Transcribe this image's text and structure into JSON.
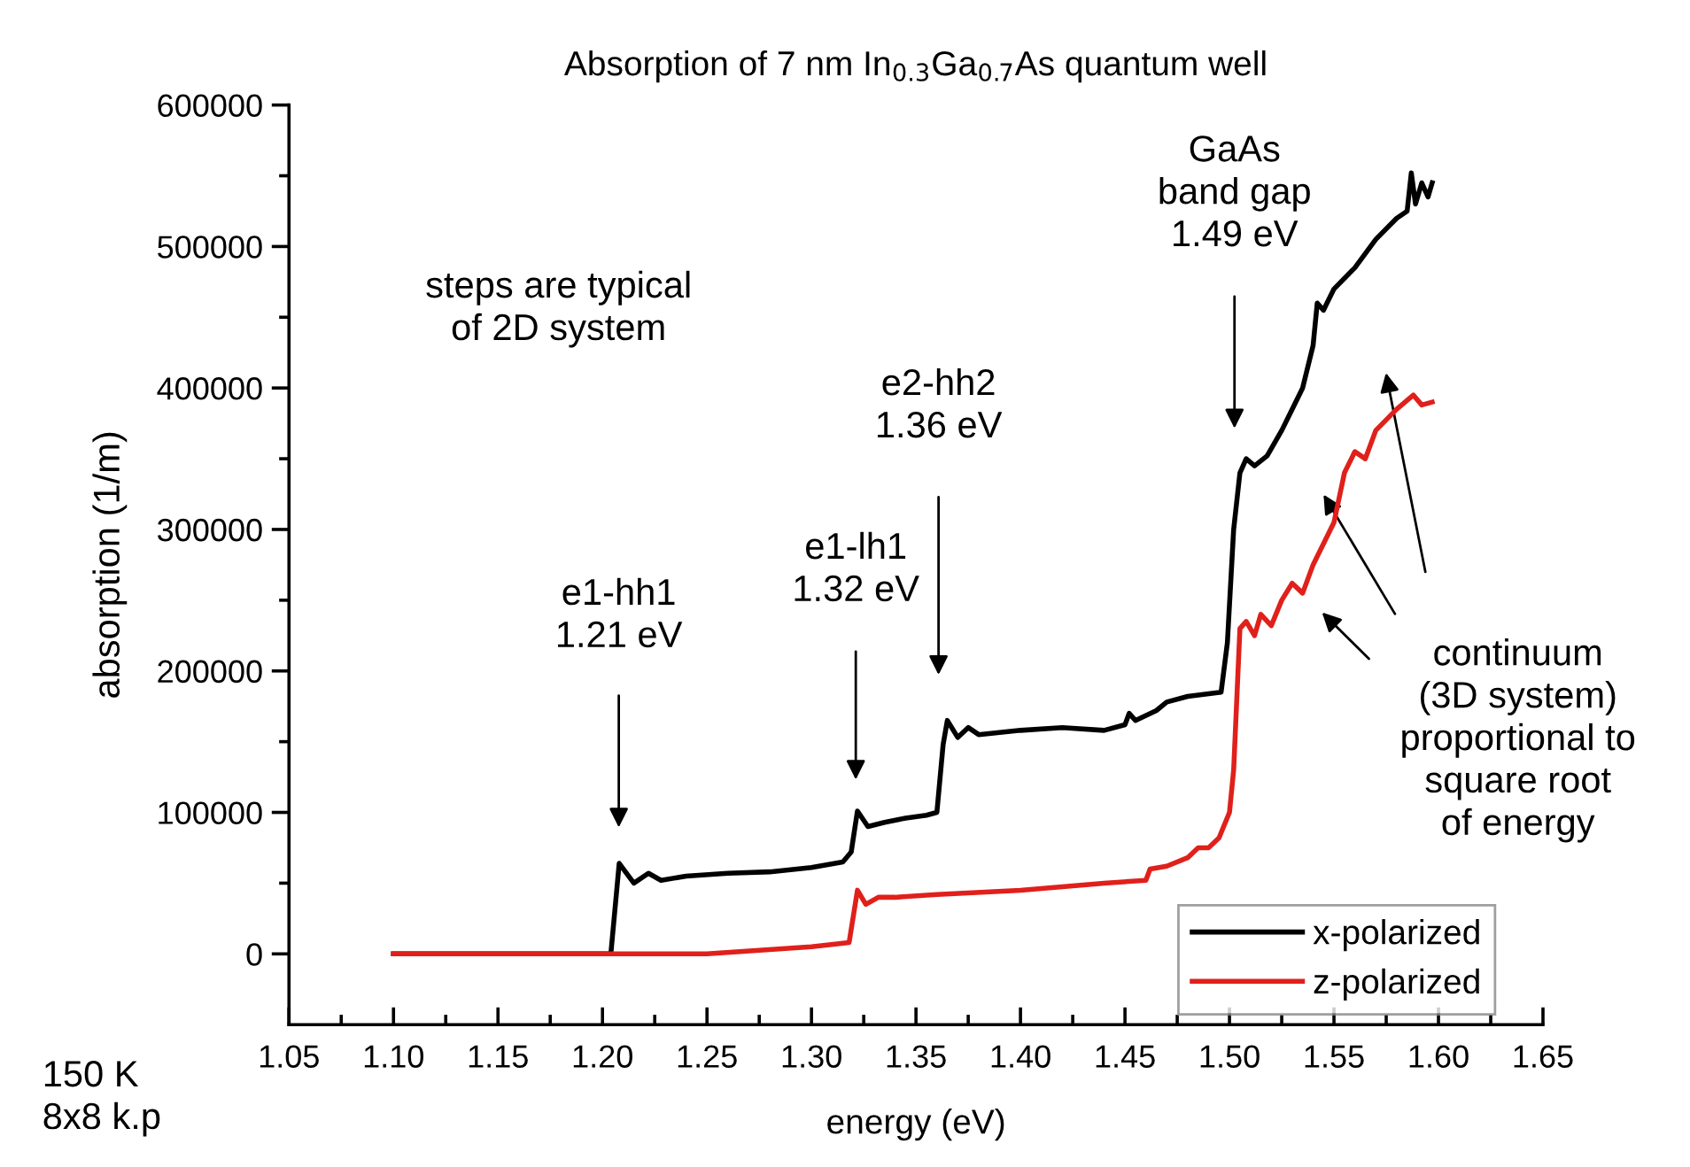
{
  "chart_data": {
    "type": "line",
    "title": "Absorption of 7 nm In$_{0.3}$Ga$_{0.7}$As quantum well",
    "xlabel": "energy (eV)",
    "ylabel": "absorption (1/m)",
    "xlim": [
      1.05,
      1.65
    ],
    "ylim": [
      -50000,
      600000
    ],
    "xticks": [
      {
        "value": 1.05,
        "label": "1.05"
      },
      {
        "value": 1.075,
        "label": null
      },
      {
        "value": 1.1,
        "label": "1.10"
      },
      {
        "value": 1.125,
        "label": null
      },
      {
        "value": 1.15,
        "label": "1.15"
      },
      {
        "value": 1.175,
        "label": null
      },
      {
        "value": 1.2,
        "label": "1.20"
      },
      {
        "value": 1.225,
        "label": null
      },
      {
        "value": 1.25,
        "label": "1.25"
      },
      {
        "value": 1.275,
        "label": null
      },
      {
        "value": 1.3,
        "label": "1.30"
      },
      {
        "value": 1.325,
        "label": null
      },
      {
        "value": 1.35,
        "label": "1.35"
      },
      {
        "value": 1.375,
        "label": null
      },
      {
        "value": 1.4,
        "label": "1.40"
      },
      {
        "value": 1.425,
        "label": null
      },
      {
        "value": 1.45,
        "label": "1.45"
      },
      {
        "value": 1.475,
        "label": null
      },
      {
        "value": 1.5,
        "label": "1.50"
      },
      {
        "value": 1.525,
        "label": null
      },
      {
        "value": 1.55,
        "label": "1.55"
      },
      {
        "value": 1.575,
        "label": null
      },
      {
        "value": 1.6,
        "label": "1.60"
      },
      {
        "value": 1.625,
        "label": null
      },
      {
        "value": 1.65,
        "label": "1.65"
      }
    ],
    "yticks": [
      0,
      {
        "value": 50000,
        "label": null
      },
      100000,
      {
        "value": 150000,
        "label": null
      },
      200000,
      {
        "value": 250000,
        "label": null
      },
      300000,
      {
        "value": 350000,
        "label": null
      },
      400000,
      {
        "value": 450000,
        "label": null
      },
      500000,
      {
        "value": 550000,
        "label": null
      },
      600000
    ],
    "grid": false,
    "legend": "bottom right",
    "marker": "none",
    "line_style": "solid",
    "series": [
      {
        "name": "x-polarized",
        "color": "#000000",
        "x": [
          1.1,
          1.204,
          1.208,
          1.215,
          1.222,
          1.228,
          1.24,
          1.26,
          1.28,
          1.3,
          1.315,
          1.319,
          1.322,
          1.327,
          1.335,
          1.345,
          1.355,
          1.36,
          1.363,
          1.365,
          1.37,
          1.375,
          1.38,
          1.4,
          1.42,
          1.44,
          1.45,
          1.452,
          1.455,
          1.465,
          1.47,
          1.48,
          1.496,
          1.499,
          1.502,
          1.505,
          1.508,
          1.512,
          1.518,
          1.525,
          1.53,
          1.535,
          1.54,
          1.542,
          1.545,
          1.55,
          1.56,
          1.57,
          1.58,
          1.585,
          1.587,
          1.589,
          1.592,
          1.595,
          1.597
        ],
        "values": [
          0,
          0,
          64000,
          50000,
          57000,
          52000,
          55000,
          57000,
          58000,
          61000,
          65000,
          72000,
          101000,
          90000,
          93000,
          96000,
          98000,
          100000,
          148000,
          165000,
          153000,
          160000,
          155000,
          158000,
          160000,
          158000,
          162000,
          170000,
          165000,
          172000,
          178000,
          182000,
          185000,
          220000,
          300000,
          340000,
          350000,
          345000,
          352000,
          370000,
          385000,
          400000,
          430000,
          460000,
          455000,
          470000,
          485000,
          505000,
          520000,
          525000,
          552000,
          530000,
          545000,
          535000,
          545000
        ]
      },
      {
        "name": "z-polarized",
        "color": "#e0201b",
        "x": [
          1.1,
          1.25,
          1.3,
          1.318,
          1.322,
          1.326,
          1.332,
          1.34,
          1.36,
          1.4,
          1.44,
          1.46,
          1.462,
          1.47,
          1.48,
          1.485,
          1.49,
          1.495,
          1.5,
          1.502,
          1.505,
          1.508,
          1.512,
          1.515,
          1.52,
          1.525,
          1.53,
          1.535,
          1.54,
          1.545,
          1.55,
          1.555,
          1.56,
          1.565,
          1.57,
          1.58,
          1.588,
          1.592,
          1.597
        ],
        "values": [
          0,
          0,
          5000,
          8000,
          45000,
          35000,
          40000,
          40000,
          42000,
          45000,
          50000,
          52000,
          60000,
          62000,
          68000,
          75000,
          75000,
          82000,
          100000,
          130000,
          230000,
          235000,
          225000,
          240000,
          232000,
          250000,
          262000,
          255000,
          275000,
          290000,
          305000,
          340000,
          355000,
          350000,
          370000,
          385000,
          395000,
          388000,
          390000
        ]
      }
    ],
    "annotations": [
      "steps are typical\nof 2D system",
      "e1-hh1\n1.21 eV",
      "e1-lh1\n1.32 eV",
      "e2-hh2\n1.36 eV",
      "GaAs\nband gap\n1.49 eV",
      "continuum\n(3D system)\nproportional to\nsquare root\nof energy",
      "150 K\n8x8 k.p"
    ]
  }
}
